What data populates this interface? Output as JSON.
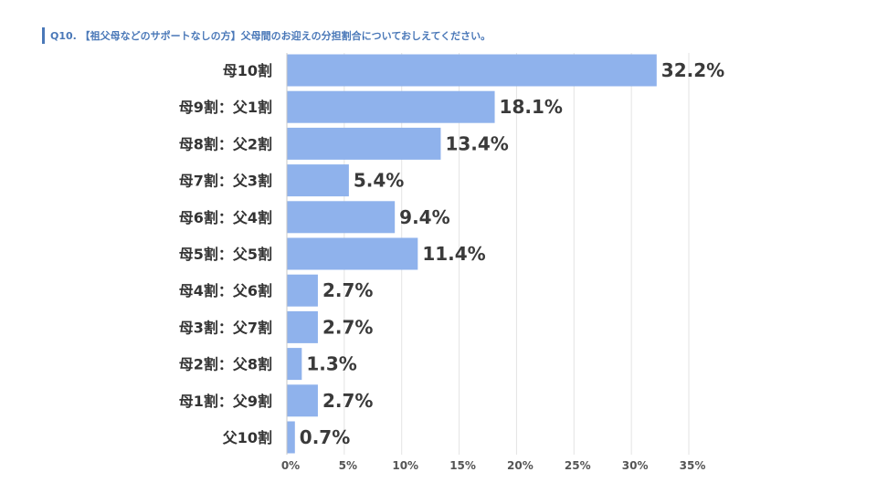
{
  "title": "Q10. 【祖父母などのサポートなしの方】父母間のお迎えの分担割合についておしえてください。",
  "colors": {
    "bar": "#8fb2ec",
    "title": "#4a78b8",
    "grid": "#e3e3e3",
    "text": "#333333"
  },
  "chart_data": {
    "type": "bar",
    "orientation": "horizontal",
    "categories": [
      "母10割",
      "母9割：父1割",
      "母8割：父2割",
      "母7割：父3割",
      "母6割：父4割",
      "母5割：父5割",
      "母4割：父6割",
      "母3割：父7割",
      "母2割：父8割",
      "母1割：父9割",
      "父10割"
    ],
    "values": [
      32.2,
      18.1,
      13.4,
      5.4,
      9.4,
      11.4,
      2.7,
      2.7,
      1.3,
      2.7,
      0.7
    ],
    "value_labels": [
      "32.2%",
      "18.1%",
      "13.4%",
      "5.4%",
      "9.4%",
      "11.4%",
      "2.7%",
      "2.7%",
      "1.3%",
      "2.7%",
      "0.7%"
    ],
    "xlim": [
      0,
      35
    ],
    "xticks": [
      0,
      5,
      10,
      15,
      20,
      25,
      30,
      35
    ],
    "xtick_labels": [
      "0%",
      "5%",
      "10%",
      "15%",
      "20%",
      "25%",
      "30%",
      "35%"
    ],
    "grid": true
  }
}
